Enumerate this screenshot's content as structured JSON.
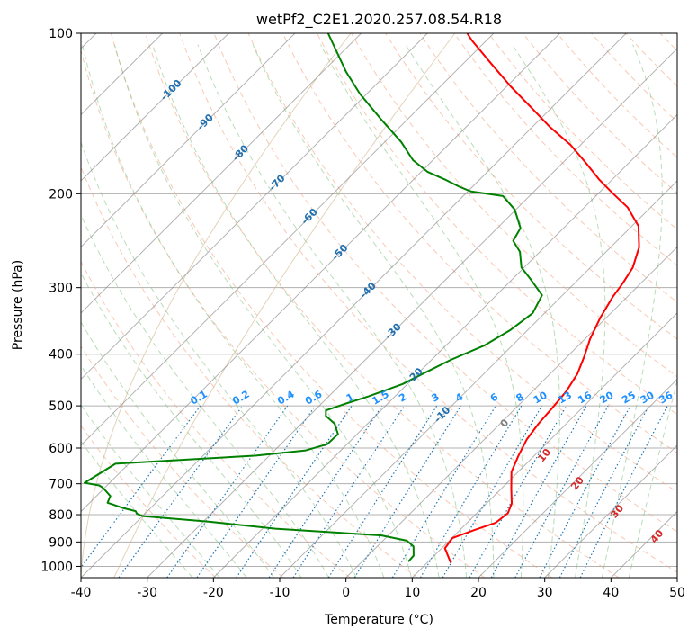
{
  "chart_data": {
    "type": "line",
    "subtype": "skew-t log-p diagram",
    "title": "wetPf2_C2E1.2020.257.08.54.R18",
    "xlabel": "Temperature (°C)",
    "ylabel": "Pressure (hPa)",
    "xlim": [
      -40,
      50
    ],
    "ylim": [
      1050,
      100
    ],
    "y_scale": "log",
    "grid": true,
    "x_ticks": [
      -40,
      -30,
      -20,
      -10,
      0,
      10,
      20,
      30,
      40,
      50
    ],
    "y_ticks": [
      100,
      200,
      300,
      400,
      500,
      600,
      700,
      800,
      900,
      1000
    ],
    "colors": {
      "temperature": "#ff0000",
      "dewpoint": "#008000",
      "isotherm": "#808080",
      "dry_adiabat": "#f4a582",
      "moist_adiabat": "#7fbf7f",
      "mixing_ratio": "#1f77b4",
      "mixing_label": "#1e90ff",
      "isotherm_label": "#1f6fb0",
      "moist_label": "#d62728",
      "special_curve": "#d2b48c"
    },
    "series": [
      {
        "role": "temperature",
        "points": [
          [
            13.6,
            985
          ],
          [
            10.5,
            925
          ],
          [
            10.1,
            885
          ],
          [
            12.2,
            855
          ],
          [
            14.3,
            828
          ],
          [
            14.7,
            795
          ],
          [
            13.8,
            762
          ],
          [
            11.5,
            715
          ],
          [
            9.0,
            665
          ],
          [
            7.6,
            620
          ],
          [
            6.4,
            578
          ],
          [
            5.8,
            540
          ],
          [
            5.5,
            505
          ],
          [
            5.1,
            470
          ],
          [
            4.1,
            435
          ],
          [
            2.6,
            405
          ],
          [
            0.8,
            375
          ],
          [
            -0.9,
            342
          ],
          [
            -2.2,
            312
          ],
          [
            -2.7,
            295
          ],
          [
            -3.6,
            275
          ],
          [
            -5.7,
            252
          ],
          [
            -9.0,
            230
          ],
          [
            -13.5,
            212
          ],
          [
            -17.7,
            200
          ],
          [
            -22.0,
            188
          ],
          [
            -26.5,
            175
          ],
          [
            -31.5,
            162
          ],
          [
            -37.3,
            150
          ],
          [
            -43.0,
            138
          ],
          [
            -49.3,
            126
          ],
          [
            -55.8,
            114
          ],
          [
            -62.3,
            103
          ],
          [
            -64.0,
            100
          ]
        ]
      },
      {
        "role": "dewpoint",
        "points": [
          [
            7.0,
            980
          ],
          [
            6.9,
            955
          ],
          [
            5.5,
            918
          ],
          [
            3.6,
            895
          ],
          [
            -1.0,
            875
          ],
          [
            -18.0,
            850
          ],
          [
            -29.0,
            825
          ],
          [
            -40.0,
            805
          ],
          [
            -41.2,
            797
          ],
          [
            -41.8,
            788
          ],
          [
            -44.0,
            778
          ],
          [
            -47.3,
            760
          ],
          [
            -47.9,
            738
          ],
          [
            -50.3,
            712
          ],
          [
            -51.2,
            705
          ],
          [
            -53.8,
            697
          ],
          [
            -52.0,
            642
          ],
          [
            -32.0,
            620
          ],
          [
            -25.3,
            606
          ],
          [
            -23.0,
            590
          ],
          [
            -22.9,
            565
          ],
          [
            -25.0,
            540
          ],
          [
            -27.5,
            522
          ],
          [
            -28.3,
            510
          ],
          [
            -26.3,
            495
          ],
          [
            -24.0,
            480
          ],
          [
            -20.7,
            455
          ],
          [
            -19.2,
            435
          ],
          [
            -17.1,
            410
          ],
          [
            -14.2,
            385
          ],
          [
            -12.6,
            360
          ],
          [
            -11.8,
            335
          ],
          [
            -13.1,
            310
          ],
          [
            -17.1,
            290
          ],
          [
            -20.4,
            275
          ],
          [
            -23.0,
            257
          ],
          [
            -25.7,
            245
          ],
          [
            -26.5,
            232
          ],
          [
            -30.2,
            214
          ],
          [
            -34.0,
            202
          ],
          [
            -39.5,
            198
          ],
          [
            -42.0,
            194
          ],
          [
            -45.3,
            188
          ],
          [
            -49.0,
            182
          ],
          [
            -53.0,
            173
          ],
          [
            -57.5,
            160
          ],
          [
            -64.0,
            145
          ],
          [
            -71.0,
            130
          ],
          [
            -76.5,
            118
          ],
          [
            -82.0,
            106
          ],
          [
            -85.0,
            100
          ]
        ]
      }
    ],
    "isotherm_labels": [
      "-100",
      "-90",
      "-80",
      "-70",
      "-60",
      "-50",
      "-40",
      "-30",
      "-20",
      "-10"
    ],
    "mixing_ratio_labels": [
      "0.1",
      "0.2",
      "0.4",
      "0.6",
      "1",
      "1.5",
      "2",
      "3",
      "4",
      "6",
      "8",
      "10",
      "13",
      "16",
      "20",
      "25",
      "30",
      "36"
    ],
    "moist_adiabat_labels": [
      "0",
      "10",
      "20",
      "30",
      "40"
    ]
  }
}
